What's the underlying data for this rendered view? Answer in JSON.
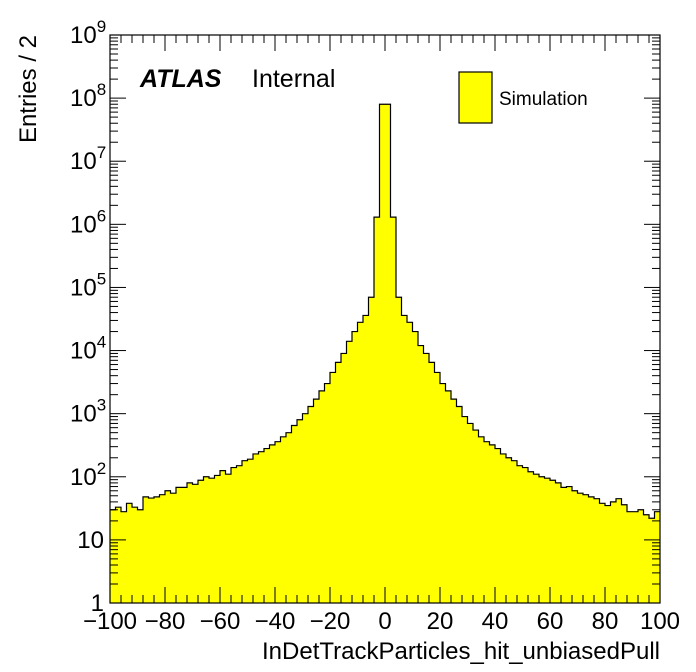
{
  "chart_data": {
    "type": "bar",
    "title": "",
    "xlabel": "InDetTrackParticles_hit_unbiasedPull",
    "ylabel": "Entries / 2",
    "xlim": [
      -100,
      100
    ],
    "ylim": [
      1,
      1000000000
    ],
    "yscale": "log",
    "grid": false,
    "legend_position": "top-right",
    "bin_width": 2,
    "atlas_label": {
      "bold": "ATLAS",
      "normal": "Internal"
    },
    "series": [
      {
        "name": "Simulation",
        "fill_color": "#ffff00",
        "edge_color": "#000000",
        "x": [
          -99,
          -97,
          -95,
          -93,
          -91,
          -89,
          -87,
          -85,
          -83,
          -81,
          -79,
          -77,
          -75,
          -73,
          -71,
          -69,
          -67,
          -65,
          -63,
          -61,
          -59,
          -57,
          -55,
          -53,
          -51,
          -49,
          -47,
          -45,
          -43,
          -41,
          -39,
          -37,
          -35,
          -33,
          -31,
          -29,
          -27,
          -25,
          -23,
          -21,
          -19,
          -17,
          -15,
          -13,
          -11,
          -9,
          -7,
          -5,
          -3,
          -1,
          1,
          3,
          5,
          7,
          9,
          11,
          13,
          15,
          17,
          19,
          21,
          23,
          25,
          27,
          29,
          31,
          33,
          35,
          37,
          39,
          41,
          43,
          45,
          47,
          49,
          51,
          53,
          55,
          57,
          59,
          61,
          63,
          65,
          67,
          69,
          71,
          73,
          75,
          77,
          79,
          81,
          83,
          85,
          87,
          89,
          91,
          93,
          95,
          97,
          99
        ],
        "values": [
          30,
          33,
          28,
          38,
          33,
          30,
          48,
          46,
          48,
          52,
          60,
          55,
          68,
          68,
          80,
          76,
          88,
          100,
          95,
          105,
          125,
          110,
          140,
          150,
          180,
          190,
          230,
          250,
          280,
          320,
          360,
          430,
          500,
          650,
          800,
          1000,
          1300,
          1700,
          2300,
          3000,
          4500,
          6500,
          9000,
          14000,
          20000,
          28000,
          36000,
          70000,
          1300000,
          80000000,
          80000000,
          1300000,
          70000,
          36000,
          28000,
          20000,
          12000,
          9000,
          6500,
          4500,
          3000,
          2300,
          1700,
          1300,
          900,
          700,
          550,
          430,
          360,
          320,
          280,
          230,
          200,
          180,
          150,
          140,
          120,
          110,
          100,
          95,
          88,
          80,
          68,
          70,
          60,
          55,
          52,
          48,
          45,
          38,
          35,
          40,
          45,
          36,
          28,
          28,
          30,
          25,
          22,
          28
        ]
      }
    ],
    "x_ticks": [
      "-100",
      "-80",
      "-60",
      "-40",
      "-20",
      "0",
      "20",
      "40",
      "60",
      "80",
      "100"
    ],
    "y_ticks": [
      {
        "base": "1",
        "exp": ""
      },
      {
        "base": "10",
        "exp": ""
      },
      {
        "base": "10",
        "exp": "2"
      },
      {
        "base": "10",
        "exp": "3"
      },
      {
        "base": "10",
        "exp": "4"
      },
      {
        "base": "10",
        "exp": "5"
      },
      {
        "base": "10",
        "exp": "6"
      },
      {
        "base": "10",
        "exp": "7"
      },
      {
        "base": "10",
        "exp": "8"
      },
      {
        "base": "10",
        "exp": "9"
      }
    ]
  }
}
